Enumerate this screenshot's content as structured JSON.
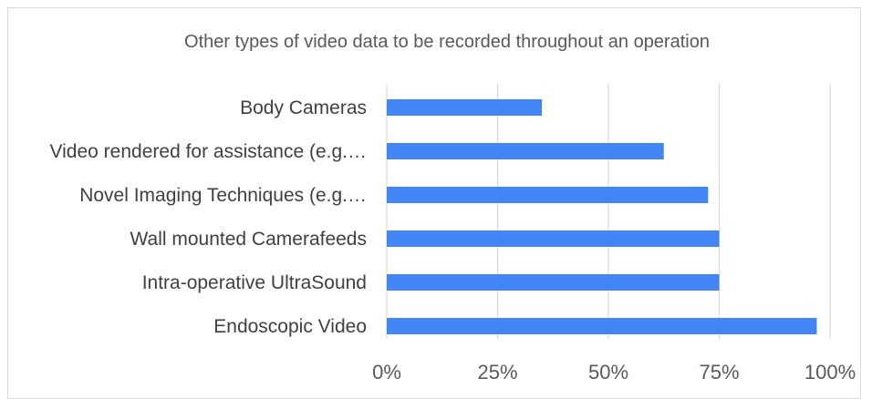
{
  "chart_data": {
    "type": "bar",
    "orientation": "horizontal",
    "title": "Other types of video data to be recorded throughout an operation",
    "categories": [
      "Body Cameras",
      "Video rendered for assistance (e.g.…",
      "Novel Imaging Techniques (e.g.…",
      "Wall mounted Camerafeeds",
      "Intra-operative UltraSound",
      "Endoscopic Video"
    ],
    "values": [
      35,
      62.5,
      72.5,
      75,
      75,
      97
    ],
    "xlim": [
      0,
      100
    ],
    "x_ticks": [
      0,
      25,
      50,
      75,
      100
    ],
    "x_tick_labels": [
      "0%",
      "25%",
      "50%",
      "75%",
      "100%"
    ],
    "grid": "vertical",
    "bar_color": "#4285f4",
    "grid_color": "#d9d9d9"
  }
}
